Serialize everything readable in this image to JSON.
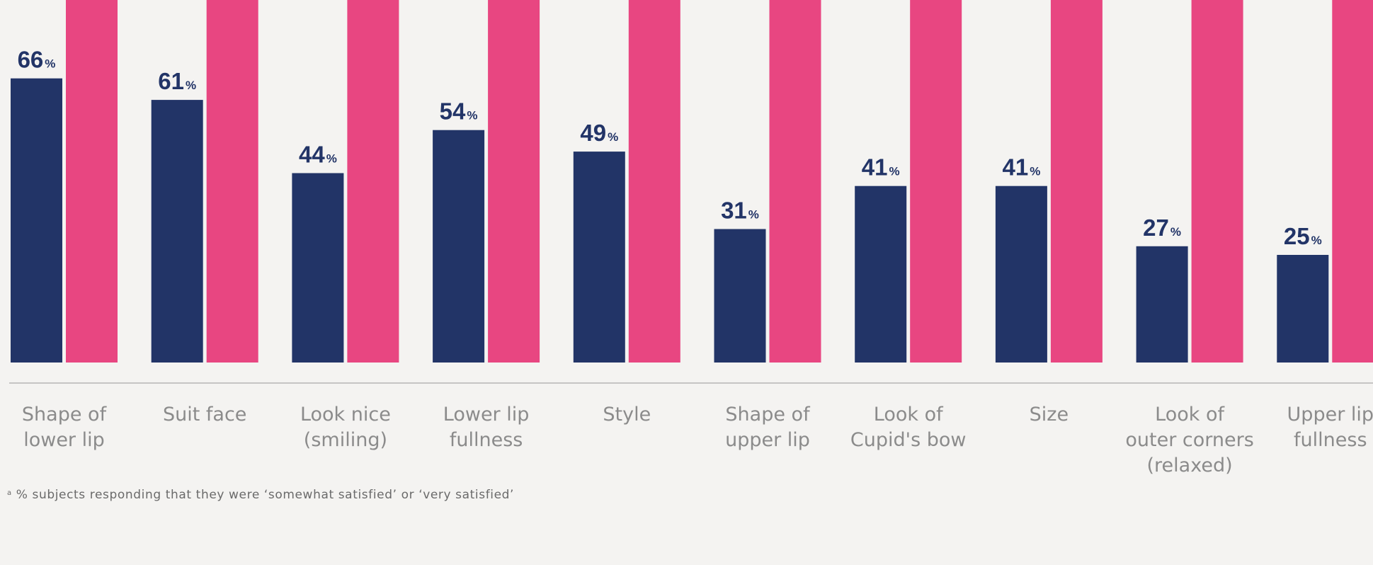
{
  "colors": {
    "background": "#f4f3f1",
    "series_navy": "#223467",
    "series_pink": "#e84681",
    "value_label": "#223467",
    "category_label": "#8b8b8b",
    "axis_line": "#a9a9a9",
    "footnote": "#6a6a6a"
  },
  "chart_data": {
    "type": "bar",
    "categories": [
      [
        "Shape of",
        "lower lip"
      ],
      [
        "Suit face"
      ],
      [
        "Look nice",
        "(smiling)"
      ],
      [
        "Lower lip",
        "fullness"
      ],
      [
        "Style"
      ],
      [
        "Shape of",
        "upper lip"
      ],
      [
        "Look of",
        "Cupid's bow"
      ],
      [
        "Size"
      ],
      [
        "Look of",
        "outer corners",
        "(relaxed)"
      ],
      [
        "Upper lip",
        "fullness"
      ]
    ],
    "series": [
      {
        "values": [
          66,
          61,
          44,
          54,
          49,
          31,
          41,
          41,
          27,
          25
        ],
        "value_labels": [
          "66",
          "61",
          "44",
          "54",
          "49",
          "31",
          "41",
          "41",
          "27",
          "25"
        ],
        "value_suffix": "%",
        "color": "#223467"
      },
      {
        "values": [
          null,
          null,
          null,
          null,
          null,
          null,
          null,
          null,
          null,
          null
        ],
        "note": "bars extend above the visible top edge; values not shown",
        "color": "#e84681"
      }
    ],
    "ylim": [
      0,
      84
    ],
    "grid": false,
    "legend": "none"
  },
  "footnote": {
    "marker": "a",
    "text": "% subjects responding that they were ‘somewhat satisfied’ or ‘very satisfied’"
  }
}
